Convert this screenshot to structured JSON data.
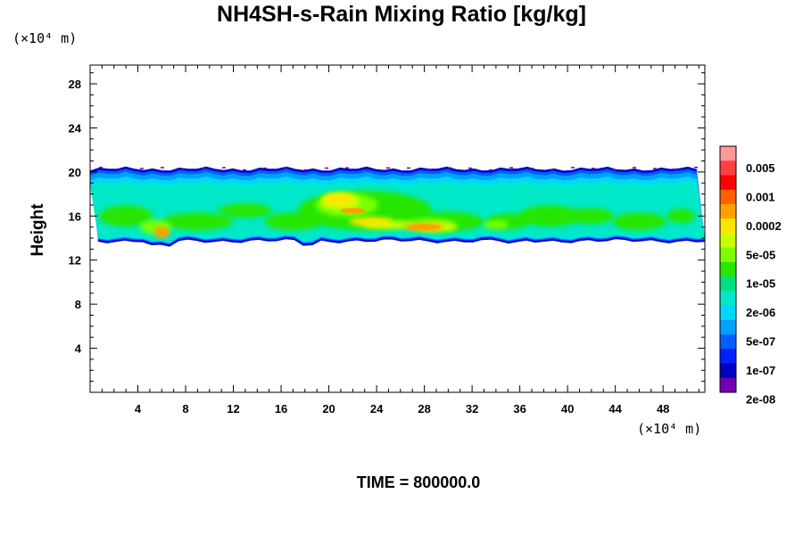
{
  "chart_data": {
    "type": "heatmap",
    "title": "NH4SH-s-Rain Mixing Ratio [kg/kg]",
    "ylabel": "Height",
    "x_unit": "(×10⁴ m)",
    "y_unit": "(×10⁴ m)",
    "footer": "TIME = 800000.0",
    "xlim": [
      0,
      51.5
    ],
    "ylim": [
      0,
      29.7
    ],
    "x_ticks": [
      4,
      8,
      12,
      16,
      20,
      24,
      28,
      32,
      36,
      40,
      44,
      48
    ],
    "y_ticks": [
      4,
      8,
      12,
      16,
      20,
      24,
      28
    ],
    "grid": false,
    "layer": {
      "bottom": 13.8,
      "top": 20.2
    },
    "colorbar": {
      "labels": [
        "0.005",
        "0.001",
        "0.0002",
        "5e-05",
        "1e-05",
        "2e-06",
        "5e-07",
        "1e-07",
        "2e-08"
      ],
      "colors": [
        "#ff9999",
        "#ff4040",
        "#ff0000",
        "#ff6000",
        "#ffa000",
        "#ffe600",
        "#c8ff00",
        "#7cff00",
        "#28e600",
        "#00e080",
        "#00e8c8",
        "#00d8ff",
        "#00a0ff",
        "#0060ff",
        "#0020ff",
        "#0000c0",
        "#7000b0"
      ]
    },
    "max_regions": [
      {
        "x": 6,
        "y": 14.5,
        "level": "0.0002"
      },
      {
        "x": 22,
        "y": 16.5,
        "level": "0.0002"
      },
      {
        "x": 28,
        "y": 15.0,
        "level": "0.0002"
      }
    ]
  }
}
